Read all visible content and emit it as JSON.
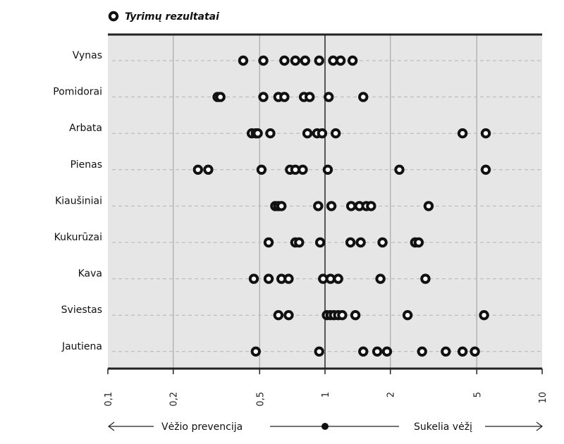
{
  "legend": {
    "label": "Tyrimų rezultatai"
  },
  "direction": {
    "left_label": "Vėžio prevencija",
    "right_label": "Sukelia vėžį"
  },
  "colors": {
    "plot_background": "#e6e6e6",
    "marker": "#111111",
    "axis": "#222222"
  },
  "chart_data": {
    "type": "scatter",
    "x_scale": "log",
    "xlim": [
      0.1,
      10
    ],
    "x_ticks": [
      0.1,
      0.2,
      0.5,
      1,
      2,
      5,
      10
    ],
    "x_tick_labels": [
      "0,1",
      "0,2",
      "0,5",
      "1",
      "2",
      "5",
      "10"
    ],
    "reference_line": 1,
    "grid": true,
    "categories": [
      "Vynas",
      "Pomidorai",
      "Arbata",
      "Pienas",
      "Kiaušiniai",
      "Kukurūzai",
      "Kava",
      "Sviestas",
      "Jautiena"
    ],
    "series": [
      {
        "name": "Tyrimų rezultatai",
        "points": [
          {
            "category": "Vynas",
            "x": 0.42
          },
          {
            "category": "Vynas",
            "x": 0.52
          },
          {
            "category": "Vynas",
            "x": 0.65
          },
          {
            "category": "Vynas",
            "x": 0.73
          },
          {
            "category": "Vynas",
            "x": 0.81
          },
          {
            "category": "Vynas",
            "x": 0.94
          },
          {
            "category": "Vynas",
            "x": 1.09
          },
          {
            "category": "Vynas",
            "x": 1.18
          },
          {
            "category": "Vynas",
            "x": 1.34
          },
          {
            "category": "Pomidorai",
            "x": 0.32
          },
          {
            "category": "Pomidorai",
            "x": 0.33
          },
          {
            "category": "Pomidorai",
            "x": 0.52
          },
          {
            "category": "Pomidorai",
            "x": 0.61
          },
          {
            "category": "Pomidorai",
            "x": 0.65
          },
          {
            "category": "Pomidorai",
            "x": 0.8
          },
          {
            "category": "Pomidorai",
            "x": 0.85
          },
          {
            "category": "Pomidorai",
            "x": 1.04
          },
          {
            "category": "Pomidorai",
            "x": 1.5
          },
          {
            "category": "Arbata",
            "x": 0.46
          },
          {
            "category": "Arbata",
            "x": 0.48
          },
          {
            "category": "Arbata",
            "x": 0.49
          },
          {
            "category": "Arbata",
            "x": 0.56
          },
          {
            "category": "Arbata",
            "x": 0.83
          },
          {
            "category": "Arbata",
            "x": 0.92
          },
          {
            "category": "Arbata",
            "x": 0.97
          },
          {
            "category": "Arbata",
            "x": 1.12
          },
          {
            "category": "Arbata",
            "x": 4.3
          },
          {
            "category": "Arbata",
            "x": 5.5
          },
          {
            "category": "Pienas",
            "x": 0.26
          },
          {
            "category": "Pienas",
            "x": 0.29
          },
          {
            "category": "Pienas",
            "x": 0.51
          },
          {
            "category": "Pienas",
            "x": 0.69
          },
          {
            "category": "Pienas",
            "x": 0.73
          },
          {
            "category": "Pienas",
            "x": 0.79
          },
          {
            "category": "Pienas",
            "x": 1.03
          },
          {
            "category": "Pienas",
            "x": 2.2
          },
          {
            "category": "Pienas",
            "x": 5.5
          },
          {
            "category": "Kiaušiniai",
            "x": 0.59
          },
          {
            "category": "Kiaušiniai",
            "x": 0.61
          },
          {
            "category": "Kiaušiniai",
            "x": 0.63
          },
          {
            "category": "Kiaušiniai",
            "x": 0.93
          },
          {
            "category": "Kiaušiniai",
            "x": 1.07
          },
          {
            "category": "Kiaušiniai",
            "x": 1.32
          },
          {
            "category": "Kiaušiniai",
            "x": 1.44
          },
          {
            "category": "Kiaušiniai",
            "x": 1.55
          },
          {
            "category": "Kiaušiniai",
            "x": 1.63
          },
          {
            "category": "Kiaušiniai",
            "x": 3.0
          },
          {
            "category": "Kukurūzai",
            "x": 0.55
          },
          {
            "category": "Kukurūzai",
            "x": 0.73
          },
          {
            "category": "Kukurūzai",
            "x": 0.76
          },
          {
            "category": "Kukurūzai",
            "x": 0.95
          },
          {
            "category": "Kukurūzai",
            "x": 1.31
          },
          {
            "category": "Kukurūzai",
            "x": 1.46
          },
          {
            "category": "Kukurūzai",
            "x": 1.84
          },
          {
            "category": "Kukurūzai",
            "x": 2.6
          },
          {
            "category": "Kukurūzai",
            "x": 2.7
          },
          {
            "category": "Kava",
            "x": 0.47
          },
          {
            "category": "Kava",
            "x": 0.55
          },
          {
            "category": "Kava",
            "x": 0.63
          },
          {
            "category": "Kava",
            "x": 0.68
          },
          {
            "category": "Kava",
            "x": 0.98
          },
          {
            "category": "Kava",
            "x": 1.06
          },
          {
            "category": "Kava",
            "x": 1.15
          },
          {
            "category": "Kava",
            "x": 1.8
          },
          {
            "category": "Kava",
            "x": 2.9
          },
          {
            "category": "Sviestas",
            "x": 0.61
          },
          {
            "category": "Sviestas",
            "x": 0.68
          },
          {
            "category": "Sviestas",
            "x": 1.02
          },
          {
            "category": "Sviestas",
            "x": 1.06
          },
          {
            "category": "Sviestas",
            "x": 1.1
          },
          {
            "category": "Sviestas",
            "x": 1.15
          },
          {
            "category": "Sviestas",
            "x": 1.2
          },
          {
            "category": "Sviestas",
            "x": 1.38
          },
          {
            "category": "Sviestas",
            "x": 2.4
          },
          {
            "category": "Sviestas",
            "x": 5.4
          },
          {
            "category": "Jautiena",
            "x": 0.48
          },
          {
            "category": "Jautiena",
            "x": 0.94
          },
          {
            "category": "Jautiena",
            "x": 1.5
          },
          {
            "category": "Jautiena",
            "x": 1.74
          },
          {
            "category": "Jautiena",
            "x": 1.93
          },
          {
            "category": "Jautiena",
            "x": 2.8
          },
          {
            "category": "Jautiena",
            "x": 3.6
          },
          {
            "category": "Jautiena",
            "x": 4.3
          },
          {
            "category": "Jautiena",
            "x": 4.9
          }
        ]
      }
    ]
  }
}
